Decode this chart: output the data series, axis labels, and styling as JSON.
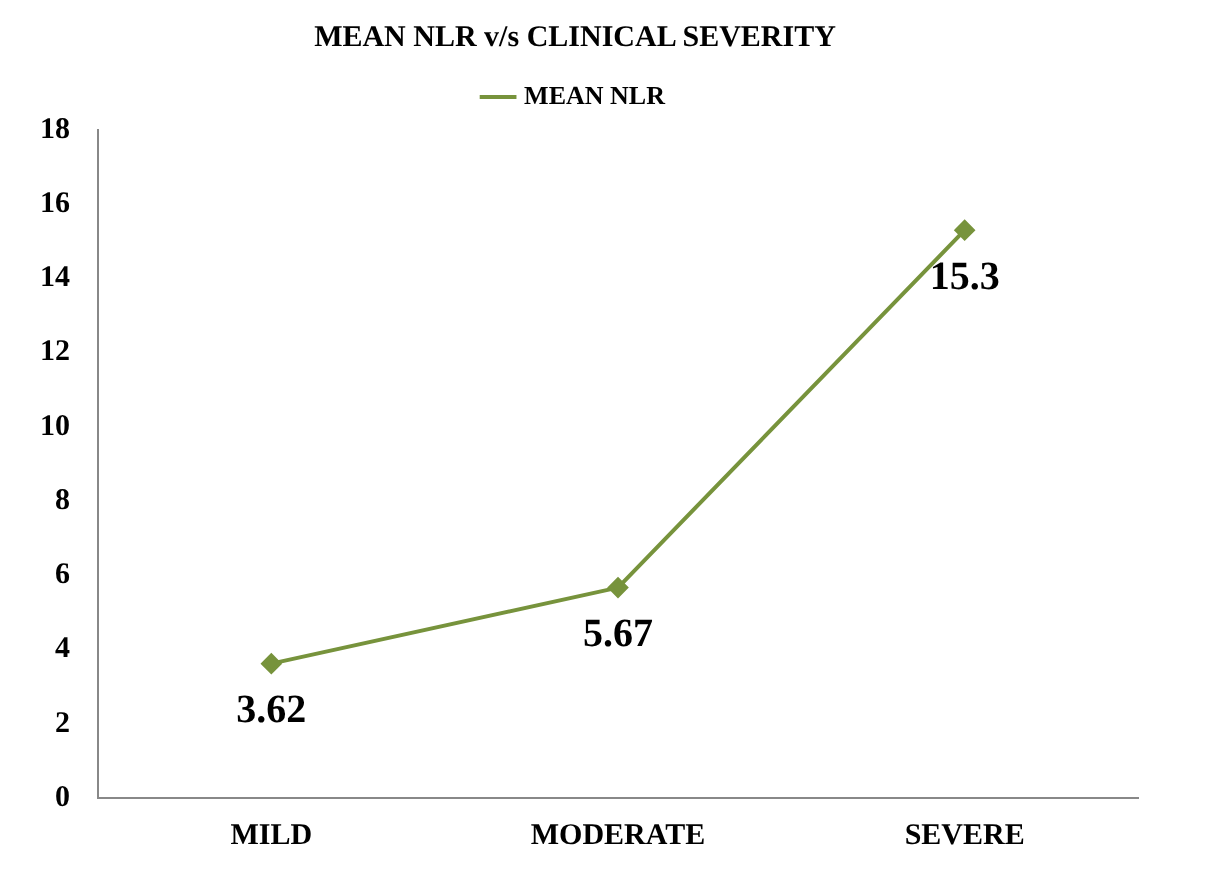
{
  "chart_data": {
    "type": "line",
    "title": "MEAN NLR v/s CLINICAL SEVERITY",
    "categories": [
      "MILD",
      "MODERATE",
      "SEVERE"
    ],
    "series": [
      {
        "name": "MEAN NLR",
        "color": "#77933c",
        "values": [
          3.62,
          5.67,
          15.3
        ]
      }
    ],
    "ylim": [
      0,
      18
    ],
    "yticks": [
      0,
      2,
      4,
      6,
      8,
      10,
      12,
      14,
      16,
      18
    ],
    "grid": false,
    "legend": "top",
    "marker": "diamond",
    "data_labels": true
  }
}
